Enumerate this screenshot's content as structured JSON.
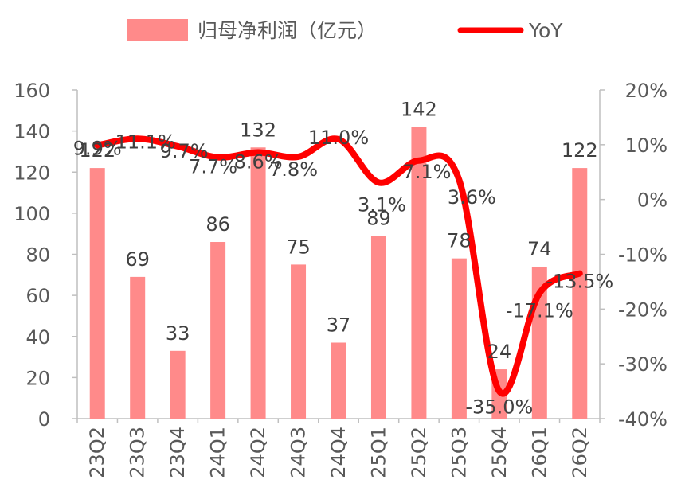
{
  "chart_data": {
    "type": "bar",
    "categories": [
      "23Q2",
      "23Q3",
      "23Q4",
      "24Q1",
      "24Q2",
      "24Q3",
      "24Q4",
      "25Q1",
      "25Q2",
      "25Q3",
      "25Q4",
      "26Q1",
      "26Q2"
    ],
    "series": [
      {
        "name": "归母净利润（亿元）",
        "type": "bar",
        "axis": "left",
        "color": "#ff8a8a",
        "values": [
          122,
          69,
          33,
          86,
          132,
          75,
          37,
          89,
          142,
          78,
          24,
          74,
          122
        ],
        "labels": [
          "122",
          "69",
          "33",
          "86",
          "132",
          "75",
          "37",
          "89",
          "142",
          "78",
          "24",
          "74",
          "122"
        ]
      },
      {
        "name": "YoY",
        "type": "line",
        "axis": "right",
        "color": "#ff0000",
        "values": [
          9.9,
          11.1,
          9.7,
          7.7,
          8.6,
          7.8,
          11.0,
          3.1,
          7.1,
          3.6,
          -35.0,
          -17.1,
          -13.5
        ],
        "labels": [
          "9.9%",
          "11.1%",
          "9.7%",
          "7.7%",
          "8.6%",
          "7.8%",
          "11.0%",
          "3.1%",
          "7.1%",
          "3.6%",
          "-35.0%",
          "-17.1%",
          "-13.5%"
        ]
      }
    ],
    "y_left": {
      "min": 0,
      "max": 160,
      "ticks": [
        "0",
        "20",
        "40",
        "60",
        "80",
        "100",
        "120",
        "140",
        "160"
      ]
    },
    "y_right": {
      "min": -40,
      "max": 20,
      "ticks": [
        "-40%",
        "-30%",
        "-20%",
        "-10%",
        "0%",
        "10%",
        "20%"
      ]
    },
    "legend": "top",
    "grid": false
  }
}
